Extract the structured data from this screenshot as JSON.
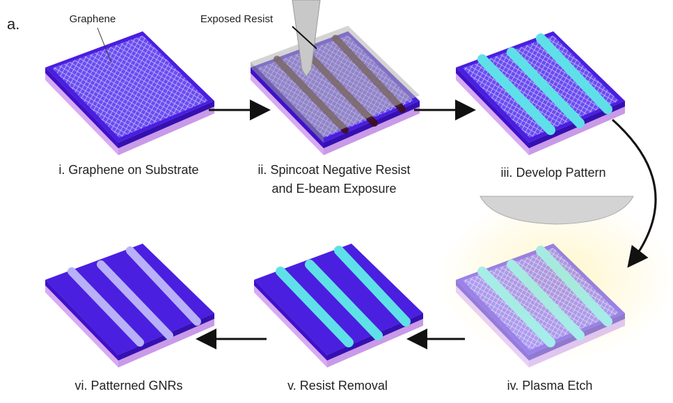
{
  "panel_label": "a.",
  "callouts": [
    "Graphene",
    "Exposed Resist"
  ],
  "steps": [
    {
      "lines": [
        "i. Graphene on Substrate"
      ]
    },
    {
      "lines": [
        "ii. Spincoat Negative Resist",
        "and E-beam Exposure"
      ]
    },
    {
      "lines": [
        "iii. Develop Pattern"
      ]
    },
    {
      "lines": [
        "iv. Plasma Etch"
      ]
    },
    {
      "lines": [
        "v. Resist Removal"
      ]
    },
    {
      "lines": [
        "vi. Patterned GNRs"
      ]
    }
  ]
}
